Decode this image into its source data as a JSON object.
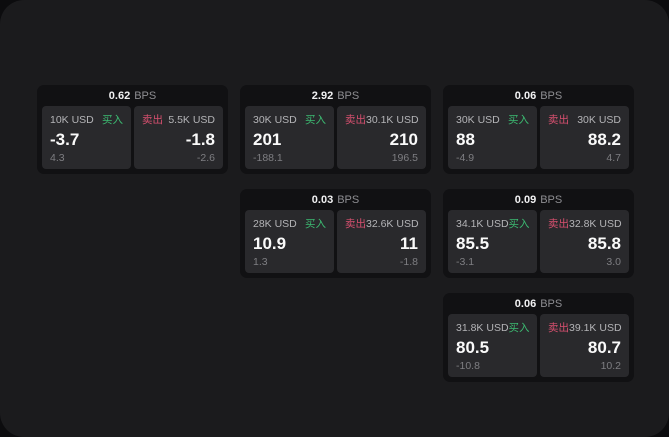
{
  "labels": {
    "bps_unit": "BPS",
    "buy": "买入",
    "sell": "卖出"
  },
  "colors": {
    "outer_bg": "#0c0c0e",
    "page_bg": "#1b1b1d",
    "card_bg": "#111113",
    "panel_bg": "#29292c",
    "buy_accent": "#3cbb72",
    "sell_accent": "#d8506f"
  },
  "cards": [
    {
      "bps": "0.62",
      "buy": {
        "amount": "10K USD",
        "price": "-3.7",
        "sub": "4.3"
      },
      "sell": {
        "amount": "5.5K USD",
        "price": "-1.8",
        "sub": "-2.6"
      }
    },
    {
      "bps": "2.92",
      "buy": {
        "amount": "30K USD",
        "price": "201",
        "sub": "-188.1"
      },
      "sell": {
        "amount": "30.1K USD",
        "price": "210",
        "sub": "196.5"
      }
    },
    {
      "bps": "0.06",
      "buy": {
        "amount": "30K USD",
        "price": "88",
        "sub": "-4.9"
      },
      "sell": {
        "amount": "30K USD",
        "price": "88.2",
        "sub": "4.7"
      }
    },
    {
      "bps": "0.03",
      "buy": {
        "amount": "28K USD",
        "price": "10.9",
        "sub": "1.3"
      },
      "sell": {
        "amount": "32.6K USD",
        "price": "11",
        "sub": "-1.8"
      }
    },
    {
      "bps": "0.09",
      "buy": {
        "amount": "34.1K USD",
        "price": "85.5",
        "sub": "-3.1"
      },
      "sell": {
        "amount": "32.8K USD",
        "price": "85.8",
        "sub": "3.0"
      }
    },
    {
      "bps": "0.06",
      "buy": {
        "amount": "31.8K USD",
        "price": "80.5",
        "sub": "-10.8"
      },
      "sell": {
        "amount": "39.1K USD",
        "price": "80.7",
        "sub": "10.2"
      }
    }
  ]
}
